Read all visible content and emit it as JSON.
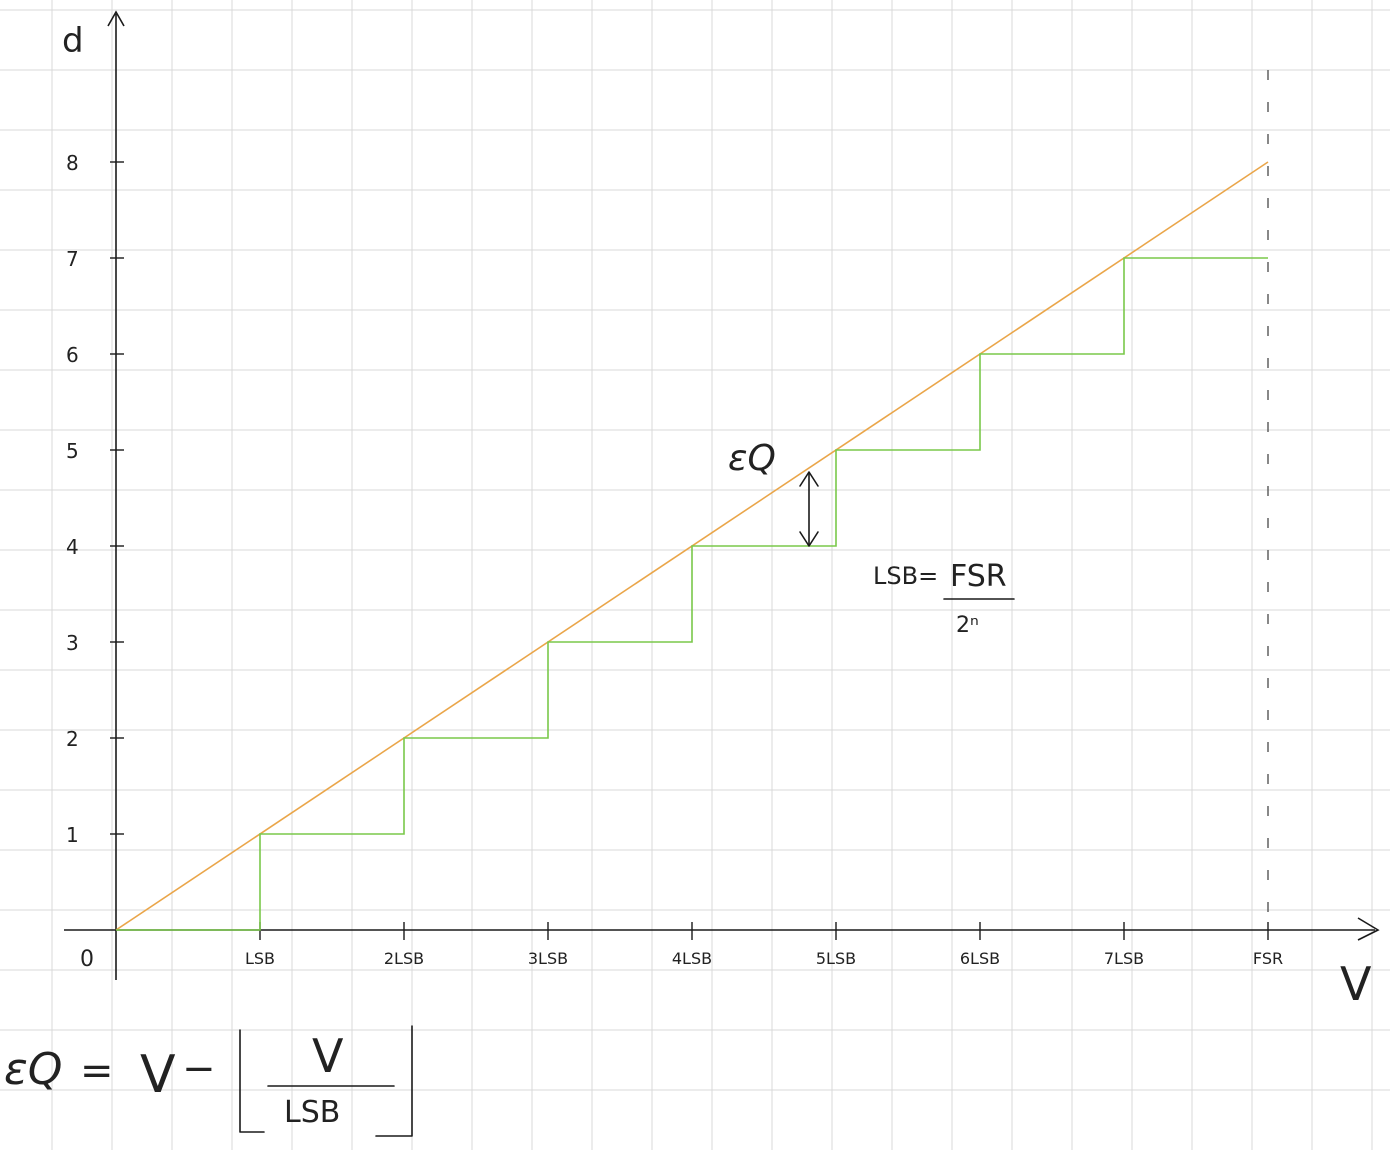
{
  "axes": {
    "y_label": "d",
    "x_label": "V",
    "origin_label": "0"
  },
  "y_ticks": [
    "1",
    "2",
    "3",
    "4",
    "5",
    "6",
    "7",
    "8"
  ],
  "x_ticks": [
    "LSB",
    "2LSB",
    "3LSB",
    "4LSB",
    "5LSB",
    "6LSB",
    "7LSB",
    "FSR"
  ],
  "annotations": {
    "error_symbol": "εQ",
    "lsb_formula_lhs": "LSB=",
    "lsb_formula_num": "FSR",
    "lsb_formula_den": "2ⁿ"
  },
  "formula": {
    "lhs": "εQ",
    "equals": "=",
    "term_v": "V",
    "minus": "−",
    "floor_num": "V",
    "floor_den": "LSB"
  },
  "colors": {
    "ideal_line": "#eaa64a",
    "staircase": "#7ac84a",
    "grid": "#d9d9d9",
    "ink": "#1a1a1a"
  }
}
